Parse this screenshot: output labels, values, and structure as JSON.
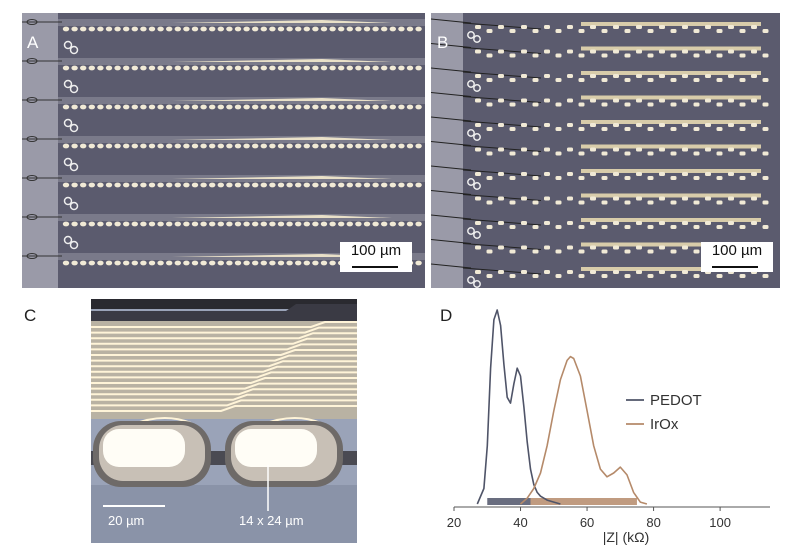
{
  "panels": {
    "a": {
      "label": "A",
      "scale_label": "100 µm"
    },
    "b": {
      "label": "B",
      "scale_label": "100 µm"
    },
    "c": {
      "label": "C",
      "scale_label": "20 µm",
      "size_label": "14 x 24 µm"
    },
    "d": {
      "label": "D"
    }
  },
  "chart_data": {
    "type": "line",
    "xlabel": "|Z| (kΩ)",
    "ylabel": "",
    "xlim": [
      20,
      115
    ],
    "x_ticks": [
      20,
      40,
      60,
      80,
      100
    ],
    "grid": false,
    "legend_position": "right",
    "series": [
      {
        "name": "PEDOT",
        "color": "#4f5468",
        "x": [
          27,
          29,
          30,
          31,
          32,
          33,
          34,
          35,
          36,
          37,
          38,
          39,
          40,
          41,
          42,
          43,
          44,
          45,
          46,
          48,
          50,
          52
        ],
        "y": [
          0,
          0.08,
          0.3,
          0.7,
          0.95,
          1.0,
          0.92,
          0.72,
          0.55,
          0.52,
          0.62,
          0.7,
          0.66,
          0.5,
          0.32,
          0.18,
          0.1,
          0.06,
          0.04,
          0.02,
          0.01,
          0
        ]
      },
      {
        "name": "IrOx",
        "color": "#b58a6a",
        "x": [
          40,
          42,
          44,
          46,
          48,
          50,
          52,
          54,
          55,
          56,
          58,
          60,
          62,
          64,
          66,
          68,
          70,
          72,
          74,
          76,
          78
        ],
        "y": [
          0,
          0.03,
          0.08,
          0.16,
          0.3,
          0.48,
          0.64,
          0.74,
          0.76,
          0.75,
          0.66,
          0.48,
          0.3,
          0.18,
          0.14,
          0.16,
          0.19,
          0.15,
          0.06,
          0.01,
          0
        ]
      }
    ],
    "ranges": [
      {
        "series": "PEDOT",
        "from": 30,
        "to": 43
      },
      {
        "series": "IrOx",
        "from": 43,
        "to": 75
      }
    ]
  }
}
